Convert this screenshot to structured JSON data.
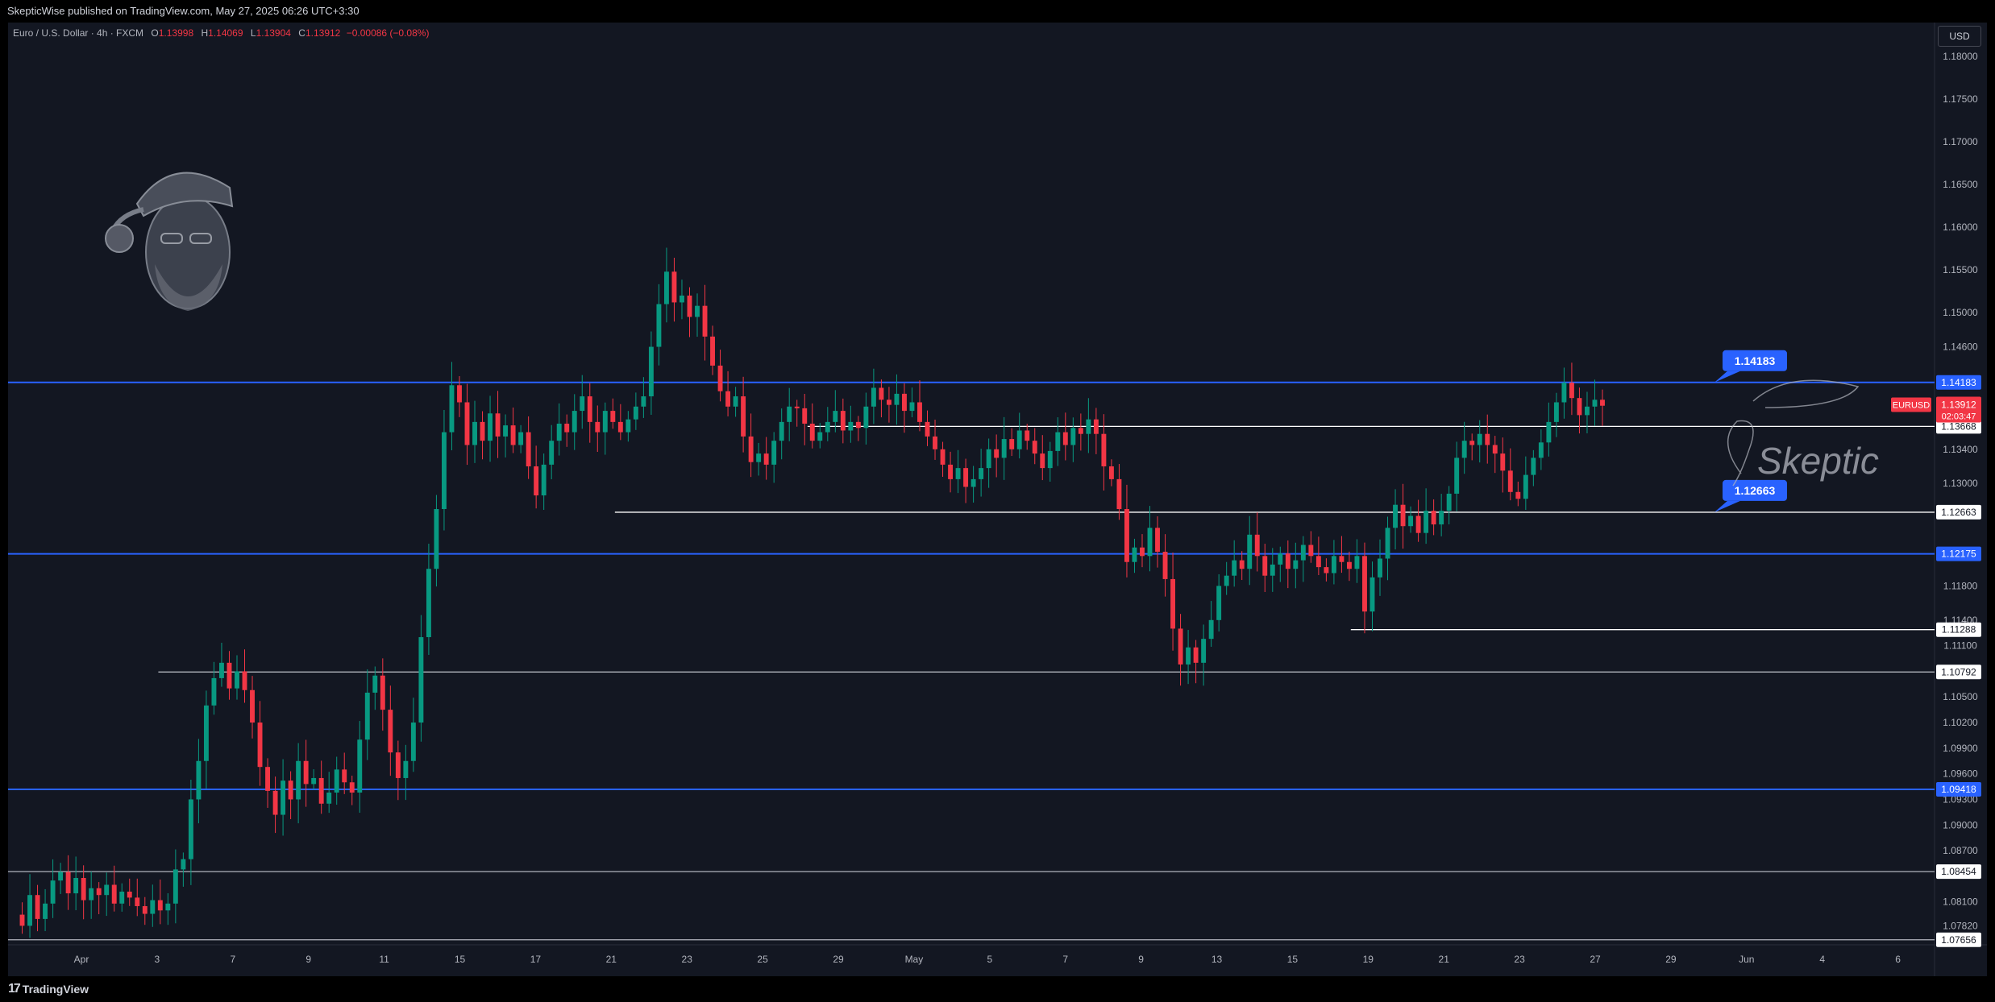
{
  "header": {
    "published": "SkepticWise published on TradingView.com, May 27, 2025 06:26 UTC+3:30"
  },
  "legend": {
    "symbol": "Euro / U.S. Dollar · 4h · FXCM",
    "o_label": "O",
    "o": "1.13998",
    "h_label": "H",
    "h": "1.14069",
    "l_label": "L",
    "l": "1.13904",
    "c_label": "C",
    "c": "1.13912",
    "change": "−0.00086 (−0.08%)"
  },
  "currency_button": "USD",
  "footer": {
    "logo_text": "TradingView",
    "logo_mark": "17"
  },
  "watermark": {
    "signature": "Skeptic"
  },
  "colors": {
    "background": "#131722",
    "up": "#089981",
    "down": "#f23645",
    "blue_line": "#2962ff",
    "white_line": "#ffffff",
    "grey_line": "#b2b5be"
  },
  "chart_data": {
    "type": "candlestick",
    "symbol": "EURUSD",
    "timeframe": "4h",
    "price_axis": {
      "min": 1.0755,
      "max": 1.1835,
      "ticks": [
        "1.18000",
        "1.17500",
        "1.17000",
        "1.16500",
        "1.16000",
        "1.15500",
        "1.15000",
        "1.14600",
        "1.13400",
        "1.13000",
        "1.11800",
        "1.11400",
        "1.11100",
        "1.10500",
        "1.10200",
        "1.09900",
        "1.09600",
        "1.09300",
        "1.09000",
        "1.08700",
        "1.08100",
        "1.07820"
      ]
    },
    "time_axis": {
      "labels": [
        "Apr",
        "3",
        "7",
        "9",
        "11",
        "15",
        "17",
        "21",
        "23",
        "25",
        "29",
        "May",
        "5",
        "7",
        "9",
        "13",
        "15",
        "19",
        "21",
        "23",
        "27",
        "29",
        "Jun",
        "4",
        "6"
      ]
    },
    "levels": [
      {
        "price": 1.14183,
        "label": "1.14183",
        "kind": "blue",
        "callout": "1.14183",
        "start_frac": 0.0
      },
      {
        "price": 1.13668,
        "label": "1.13668",
        "kind": "white",
        "start_frac": 0.415
      },
      {
        "price": 1.12663,
        "label": "1.12663",
        "kind": "white",
        "callout": "1.12663",
        "start_frac": 0.315
      },
      {
        "price": 1.12175,
        "label": "1.12175",
        "kind": "blue",
        "start_frac": 0.0
      },
      {
        "price": 1.11288,
        "label": "1.11288",
        "kind": "white",
        "start_frac": 0.697
      },
      {
        "price": 1.10792,
        "label": "1.10792",
        "kind": "grey",
        "start_frac": 0.078
      },
      {
        "price": 1.09418,
        "label": "1.09418",
        "kind": "blue",
        "start_frac": 0.0
      },
      {
        "price": 1.08454,
        "label": "1.08454",
        "kind": "grey",
        "start_frac": 0.0
      },
      {
        "price": 1.07656,
        "label": "1.07656",
        "kind": "grey",
        "start_frac": 0.0
      }
    ],
    "last_price": {
      "symbol": "EURUSD",
      "price": 1.13912,
      "label": "1.13912",
      "countdown": "02:03:47"
    },
    "path": [
      1.0795,
      1.0782,
      1.0818,
      1.079,
      1.0808,
      1.0835,
      1.0845,
      1.082,
      1.0838,
      1.0812,
      1.0826,
      1.0818,
      1.083,
      1.0808,
      1.0822,
      1.0815,
      1.0805,
      1.0796,
      1.0812,
      1.08,
      1.0808,
      1.0848,
      1.086,
      1.093,
      1.0975,
      1.104,
      1.1072,
      1.109,
      1.106,
      1.108,
      1.1058,
      1.102,
      1.0968,
      1.094,
      1.0912,
      1.0952,
      1.093,
      1.0975,
      1.0948,
      1.0955,
      1.0925,
      1.0938,
      1.0965,
      1.095,
      1.0938,
      1.1,
      1.1055,
      1.1075,
      1.1035,
      1.0985,
      1.0955,
      1.0975,
      1.102,
      1.112,
      1.12,
      1.127,
      1.136,
      1.1415,
      1.1395,
      1.1345,
      1.1372,
      1.135,
      1.1382,
      1.1355,
      1.1368,
      1.1345,
      1.136,
      1.132,
      1.1286,
      1.1322,
      1.135,
      1.137,
      1.136,
      1.1385,
      1.1402,
      1.1372,
      1.136,
      1.1385,
      1.1372,
      1.136,
      1.1375,
      1.139,
      1.1402,
      1.146,
      1.151,
      1.1548,
      1.1512,
      1.152,
      1.1495,
      1.1508,
      1.1472,
      1.1438,
      1.1408,
      1.139,
      1.1402,
      1.1355,
      1.1325,
      1.1335,
      1.1322,
      1.135,
      1.1372,
      1.139,
      1.1388,
      1.137,
      1.135,
      1.136,
      1.1372,
      1.1385,
      1.1362,
      1.1372,
      1.1365,
      1.139,
      1.1412,
      1.1398,
      1.1392,
      1.1405,
      1.1385,
      1.1395,
      1.1372,
      1.1355,
      1.134,
      1.1322,
      1.1305,
      1.1318,
      1.1296,
      1.1305,
      1.1318,
      1.134,
      1.133,
      1.1352,
      1.134,
      1.1362,
      1.135,
      1.1335,
      1.1318,
      1.1338,
      1.136,
      1.1345,
      1.1365,
      1.1358,
      1.1375,
      1.1358,
      1.132,
      1.1305,
      1.127,
      1.1208,
      1.1225,
      1.1215,
      1.1248,
      1.122,
      1.1188,
      1.113,
      1.1088,
      1.1108,
      1.109,
      1.1118,
      1.114,
      1.118,
      1.1192,
      1.121,
      1.12,
      1.124,
      1.1215,
      1.1192,
      1.1205,
      1.1218,
      1.12,
      1.121,
      1.1228,
      1.1215,
      1.1202,
      1.1195,
      1.1215,
      1.1208,
      1.12,
      1.1215,
      1.115,
      1.119,
      1.1212,
      1.1248,
      1.1275,
      1.125,
      1.1262,
      1.1242,
      1.1268,
      1.1252,
      1.1268,
      1.1288,
      1.133,
      1.135,
      1.1345,
      1.1358,
      1.1345,
      1.1335,
      1.1315,
      1.129,
      1.1282,
      1.131,
      1.133,
      1.1348,
      1.1372,
      1.1395,
      1.1418,
      1.14,
      1.138,
      1.139,
      1.1398,
      1.1391
    ]
  }
}
